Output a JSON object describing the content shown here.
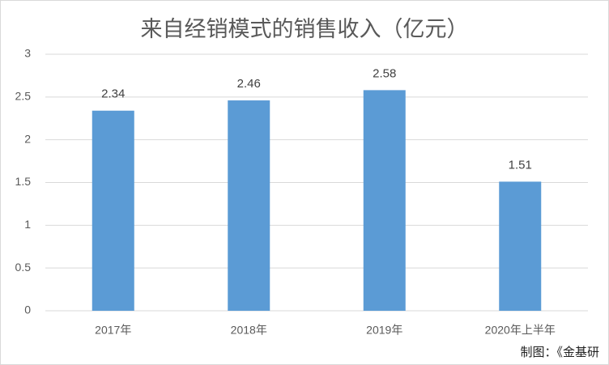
{
  "chart_data": {
    "type": "bar",
    "title": "来自经销模式的销售收入（亿元）",
    "categories": [
      "2017年",
      "2018年",
      "2019年",
      "2020年上半年"
    ],
    "values": [
      2.34,
      2.46,
      2.58,
      1.51
    ],
    "color": "#5b9bd5",
    "ylim": [
      0,
      3
    ],
    "yticks": [
      0,
      0.5,
      1,
      1.5,
      2,
      2.5,
      3
    ],
    "grid": true,
    "annotation": "制图：《金基研"
  }
}
